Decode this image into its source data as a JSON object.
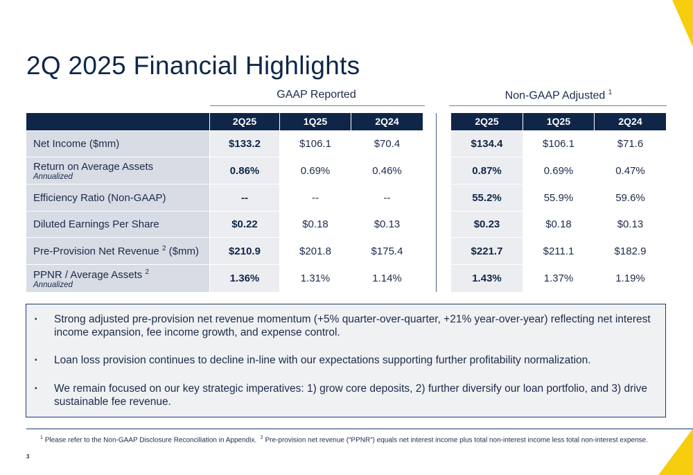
{
  "title": "2Q 2025 Financial Highlights",
  "groups": {
    "gaap_label": "GAAP Reported",
    "non_gaap_label": "Non-GAAP Adjusted",
    "non_gaap_sup": "1"
  },
  "columns": {
    "gaap": [
      "2Q25",
      "1Q25",
      "2Q24"
    ],
    "non_gaap": [
      "2Q25",
      "1Q25",
      "2Q24"
    ]
  },
  "rows": [
    {
      "label": "Net Income ($mm)",
      "sup": "",
      "sup_suffix": "",
      "sub": "",
      "gaap": [
        "$133.2",
        "$106.1",
        "$70.4"
      ],
      "non_gaap": [
        "$134.4",
        "$106.1",
        "$71.6"
      ]
    },
    {
      "label": "Return on Average Assets",
      "sup": "",
      "sup_suffix": "",
      "sub": "Annualized",
      "gaap": [
        "0.86%",
        "0.69%",
        "0.46%"
      ],
      "non_gaap": [
        "0.87%",
        "0.69%",
        "0.47%"
      ]
    },
    {
      "label": "Efficiency Ratio (Non-GAAP)",
      "sup": "",
      "sup_suffix": "",
      "sub": "",
      "gaap": [
        "--",
        "--",
        "--"
      ],
      "non_gaap": [
        "55.2%",
        "55.9%",
        "59.6%"
      ]
    },
    {
      "label": "Diluted Earnings Per Share",
      "sup": "",
      "sup_suffix": "",
      "sub": "",
      "gaap": [
        "$0.22",
        "$0.18",
        "$0.13"
      ],
      "non_gaap": [
        "$0.23",
        "$0.18",
        "$0.13"
      ]
    },
    {
      "label": "Pre-Provision Net Revenue",
      "sup": "2",
      "sup_suffix": " ($mm)",
      "sub": "",
      "gaap": [
        "$210.9",
        "$201.8",
        "$175.4"
      ],
      "non_gaap": [
        "$221.7",
        "$211.1",
        "$182.9"
      ]
    },
    {
      "label": "PPNR / Average Assets",
      "sup": "2",
      "sup_suffix": "",
      "sub": "Annualized",
      "gaap": [
        "1.36%",
        "1.31%",
        "1.14%"
      ],
      "non_gaap": [
        "1.43%",
        "1.37%",
        "1.19%"
      ]
    }
  ],
  "bullets": [
    "Strong adjusted pre-provision net revenue momentum (+5% quarter-over-quarter, +21% year-over-year) reflecting net interest income expansion, fee income growth, and expense control.",
    "Loan loss provision continues to decline in-line with our expectations supporting further profitability normalization.",
    "We remain focused on our key strategic imperatives: 1) grow core deposits, 2) further diversify our loan portfolio, and 3) drive sustainable fee revenue."
  ],
  "bullet_marker": "▪",
  "footnotes": {
    "n1_sup": "1",
    "n1_text": "Please refer to the Non-GAAP Disclosure Reconciliation in Appendix.",
    "n2_sup": "2",
    "n2_text": "Pre-provision net revenue (“PPNR”) equals net interest income plus total non-interest income less total non-interest expense."
  },
  "page_number": "3",
  "colors": {
    "navy": "#0f2649",
    "label_bg": "#d7dce5",
    "accent": "#f6cd0d",
    "box_bg": "#f0f1f2"
  }
}
